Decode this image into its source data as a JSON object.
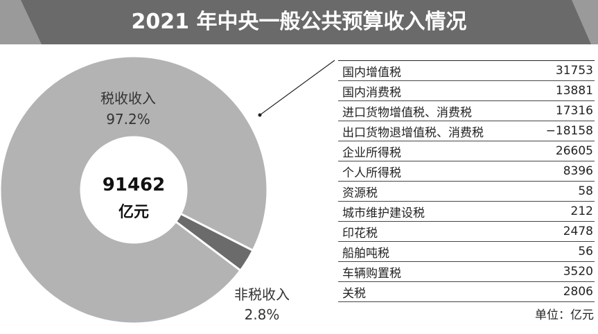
{
  "title": "2021 年中央一般公共预算收入情况",
  "chart_data": {
    "type": "pie",
    "style": "donut",
    "center_value": "91462",
    "center_unit": "亿元",
    "slices": [
      {
        "name": "税收收入",
        "percent_label": "97.2%",
        "value": 97.2,
        "color": "#b3b3b3"
      },
      {
        "name": "非税收入",
        "percent_label": "2.8%",
        "value": 2.8,
        "color": "#6b6b6b"
      }
    ],
    "detail_table": {
      "rows": [
        {
          "name": "国内增值税",
          "value": "31753"
        },
        {
          "name": "国内消费税",
          "value": "13881"
        },
        {
          "name": "进口货物增值税、消费税",
          "value": "17316"
        },
        {
          "name": "出口货物退增值税、消费税",
          "value": "−18158"
        },
        {
          "name": "企业所得税",
          "value": "26605"
        },
        {
          "name": "个人所得税",
          "value": "8396"
        },
        {
          "name": "资源税",
          "value": "58"
        },
        {
          "name": "城市维护建设税",
          "value": "212"
        },
        {
          "name": "印花税",
          "value": "2478"
        },
        {
          "name": "船舶吨税",
          "value": "56"
        },
        {
          "name": "车辆购置税",
          "value": "3520"
        },
        {
          "name": "关税",
          "value": "2806"
        }
      ],
      "unit_note": "单位：亿元"
    }
  },
  "colors": {
    "title_bg": "#6a6a6a",
    "title_stripe": "#9a9a9a",
    "tax_slice": "#b3b3b3",
    "nontax_slice": "#6b6b6b"
  }
}
